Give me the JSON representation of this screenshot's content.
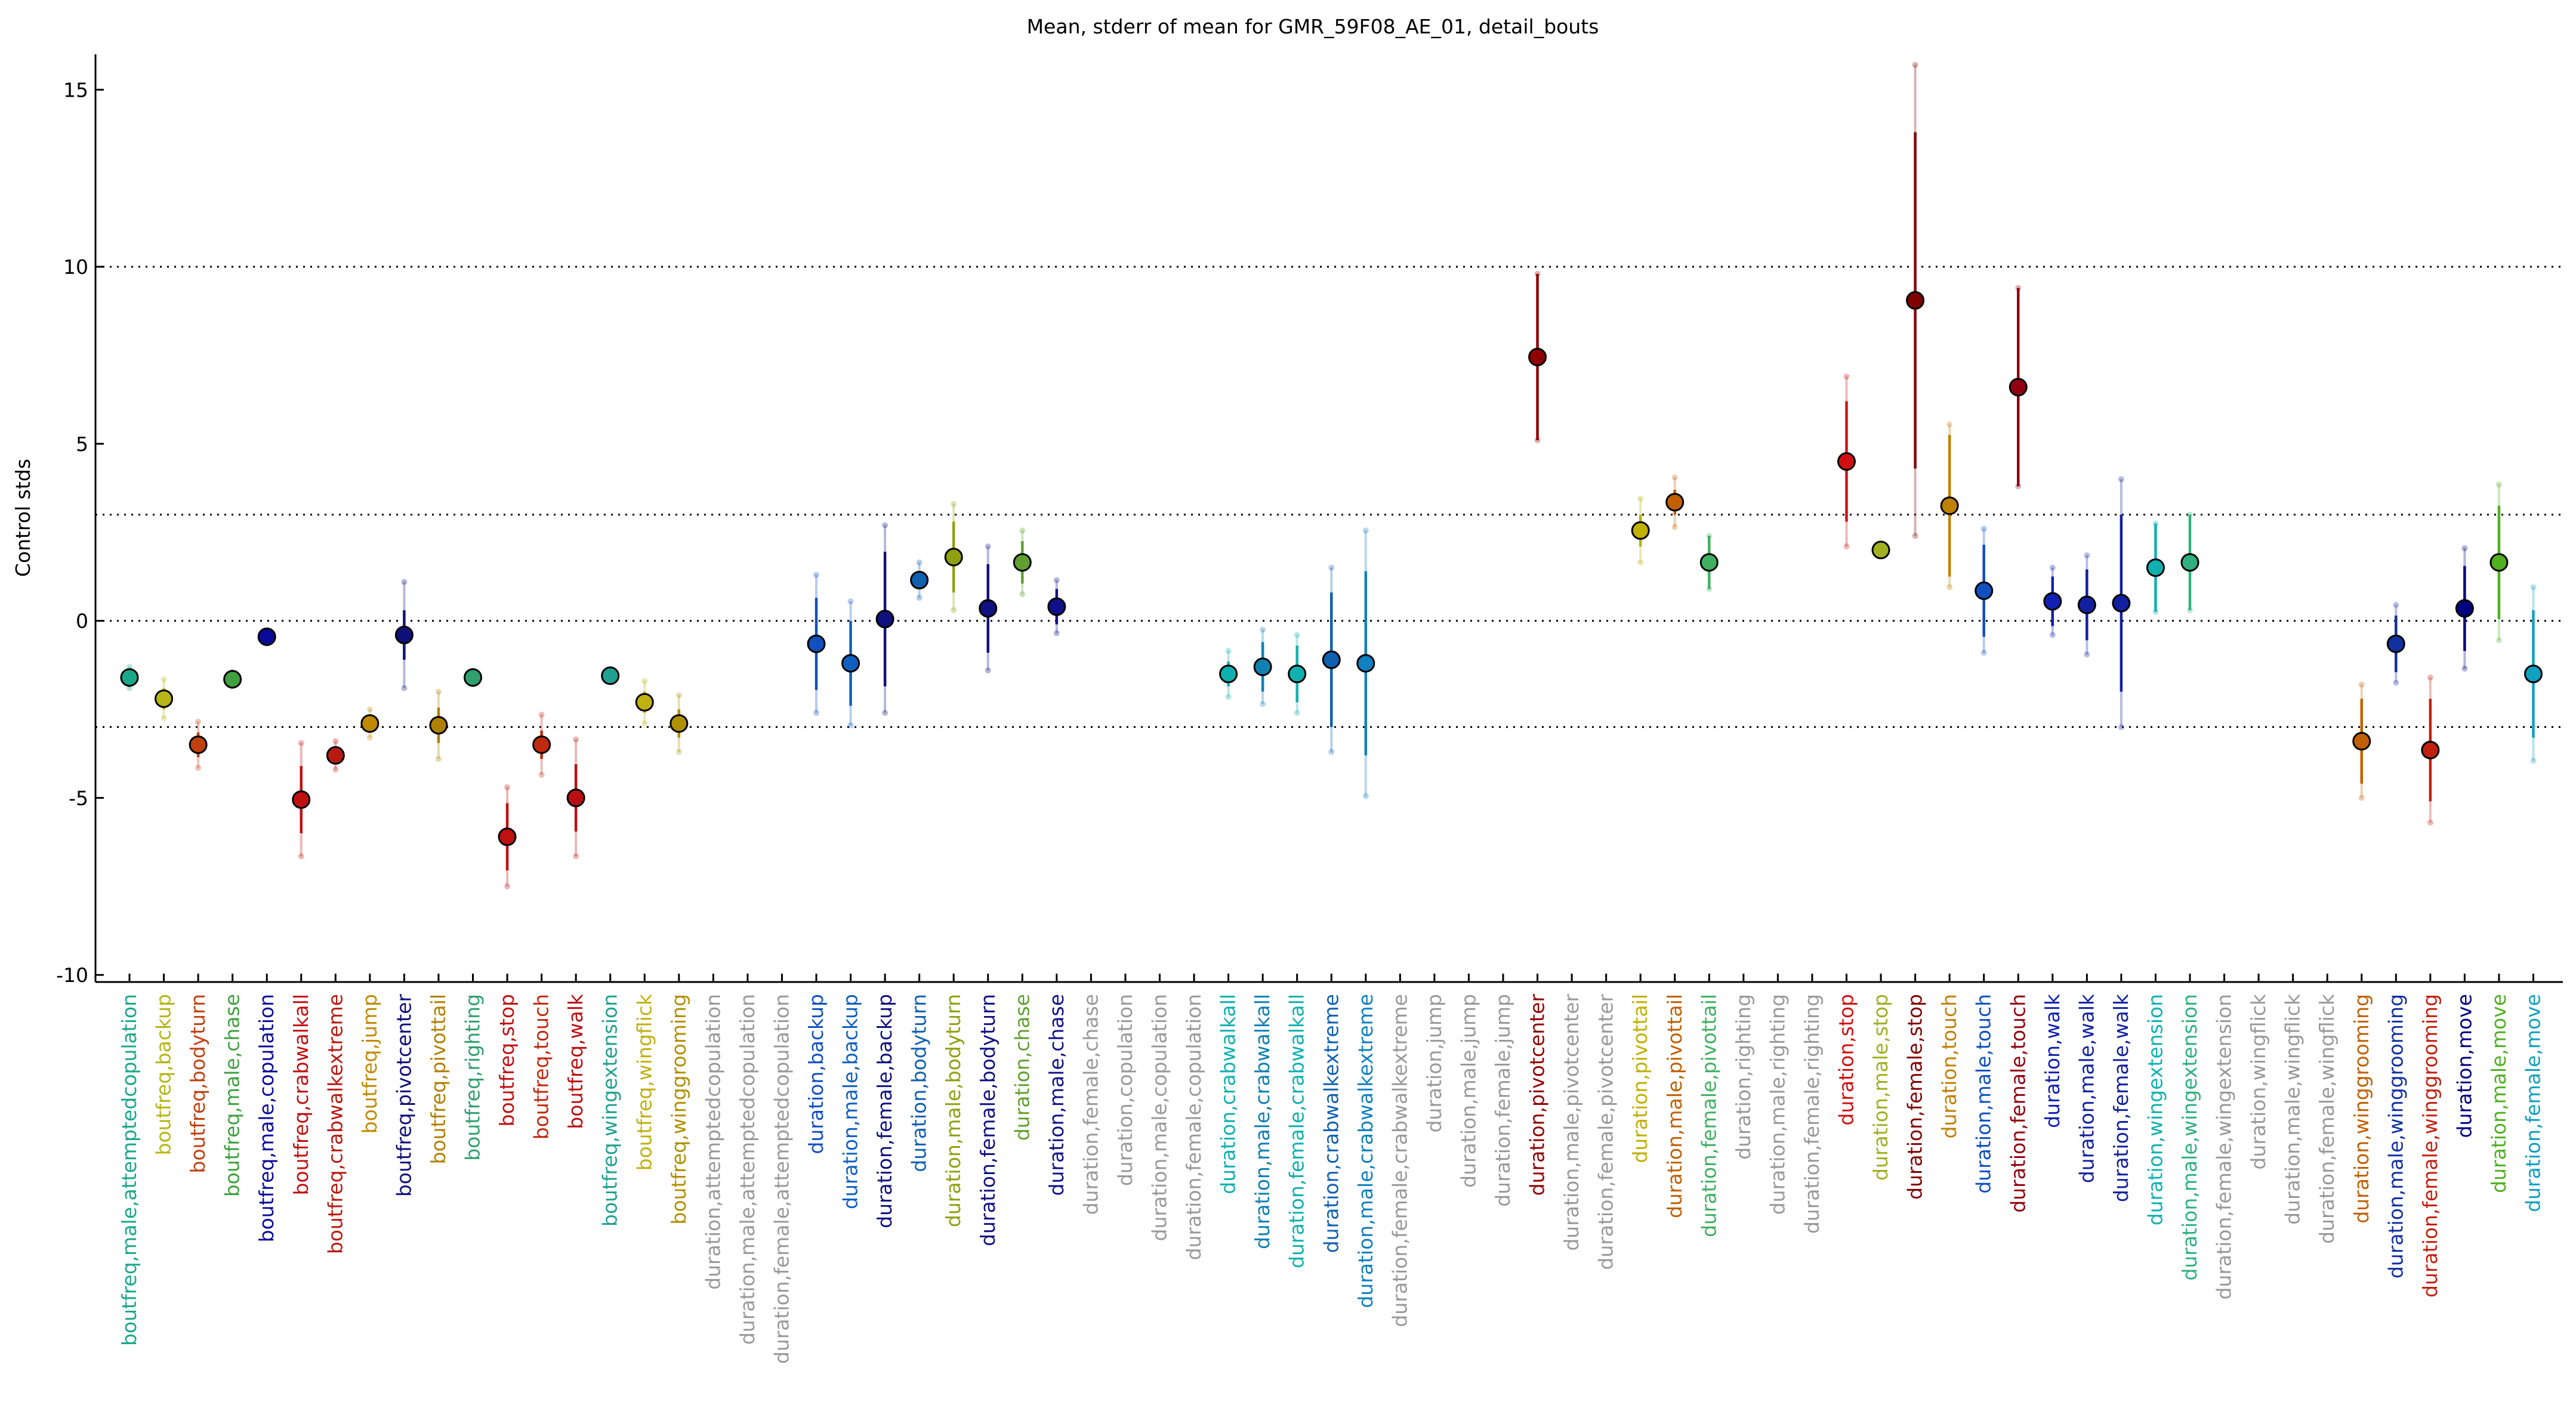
{
  "chart_data": {
    "type": "errorbar",
    "title": "Mean, stderr of mean for GMR_59F08_AE_01, detail_bouts",
    "ylabel": "Control stds",
    "ylim": [
      -10.2,
      16
    ],
    "yticks": [
      -10,
      -5,
      0,
      5,
      10,
      15
    ],
    "reference_lines": [
      10,
      3,
      0,
      -3
    ],
    "categories": [
      "boutfreq,male,attemptedcopulation",
      "boutfreq,backup",
      "boutfreq,bodyturn",
      "boutfreq,male,chase",
      "boutfreq,male,copulation",
      "boutfreq,crabwalkall",
      "boutfreq,crabwalkextreme",
      "boutfreq,jump",
      "boutfreq,pivotcenter",
      "boutfreq,pivottail",
      "boutfreq,righting",
      "boutfreq,stop",
      "boutfreq,touch",
      "boutfreq,walk",
      "boutfreq,wingextension",
      "boutfreq,wingflick",
      "boutfreq,winggrooming",
      "duration,attemptedcopulation",
      "duration,male,attemptedcopulation",
      "duration,female,attemptedcopulation",
      "duration,backup",
      "duration,male,backup",
      "duration,female,backup",
      "duration,bodyturn",
      "duration,male,bodyturn",
      "duration,female,bodyturn",
      "duration,chase",
      "duration,male,chase",
      "duration,female,chase",
      "duration,copulation",
      "duration,male,copulation",
      "duration,female,copulation",
      "duration,crabwalkall",
      "duration,male,crabwalkall",
      "duration,female,crabwalkall",
      "duration,crabwalkextreme",
      "duration,male,crabwalkextreme",
      "duration,female,crabwalkextreme",
      "duration,jump",
      "duration,male,jump",
      "duration,female,jump",
      "duration,pivotcenter",
      "duration,male,pivotcenter",
      "duration,female,pivotcenter",
      "duration,pivottail",
      "duration,male,pivottail",
      "duration,female,pivottail",
      "duration,righting",
      "duration,male,righting",
      "duration,female,righting",
      "duration,stop",
      "duration,male,stop",
      "duration,female,stop",
      "duration,touch",
      "duration,male,touch",
      "duration,female,touch",
      "duration,walk",
      "duration,male,walk",
      "duration,female,walk",
      "duration,wingextension",
      "duration,male,wingextension",
      "duration,female,wingextension",
      "duration,wingflick",
      "duration,male,wingflick",
      "duration,female,wingflick",
      "duration,winggrooming",
      "duration,male,winggrooming",
      "duration,female,winggrooming",
      "duration,move",
      "duration,male,move",
      "duration,female,move"
    ],
    "values": [
      -1.6,
      -2.2,
      -3.5,
      -1.65,
      -0.45,
      -5.05,
      -3.8,
      -2.9,
      -0.4,
      -2.95,
      -1.6,
      -6.1,
      -3.5,
      -5.0,
      -1.55,
      -2.3,
      -2.9,
      null,
      null,
      null,
      -0.65,
      -1.2,
      0.05,
      1.15,
      1.8,
      0.35,
      1.65,
      0.4,
      null,
      null,
      null,
      null,
      -1.5,
      -1.3,
      -1.5,
      -1.1,
      -1.2,
      null,
      null,
      null,
      null,
      7.45,
      null,
      null,
      2.55,
      3.35,
      1.65,
      null,
      null,
      null,
      4.5,
      2.0,
      9.05,
      3.25,
      0.85,
      6.6,
      0.55,
      0.45,
      0.5,
      1.5,
      1.65,
      null,
      null,
      null,
      null,
      -3.4,
      -0.65,
      -3.65,
      0.35,
      1.65,
      -1.5
    ],
    "errors": [
      0.15,
      0.3,
      0.35,
      0.1,
      0.1,
      0.95,
      0.25,
      0.2,
      0.7,
      0.5,
      0.1,
      0.95,
      0.4,
      0.95,
      0.1,
      0.3,
      0.4,
      null,
      null,
      null,
      1.3,
      1.2,
      1.9,
      0.2,
      1.0,
      1.25,
      0.6,
      0.5,
      null,
      null,
      null,
      null,
      0.35,
      0.7,
      0.8,
      1.9,
      2.6,
      null,
      null,
      null,
      null,
      2.35,
      null,
      null,
      0.45,
      0.35,
      0.75,
      null,
      null,
      null,
      1.7,
      0.1,
      4.75,
      2.0,
      1.3,
      2.8,
      0.7,
      1.0,
      2.5,
      1.25,
      1.35,
      null,
      null,
      null,
      null,
      1.2,
      0.8,
      1.45,
      1.2,
      1.6,
      1.8
    ],
    "spreads": [
      0.3,
      0.55,
      0.65,
      0.2,
      0.15,
      1.6,
      0.4,
      0.4,
      1.5,
      0.95,
      0.2,
      1.4,
      0.85,
      1.65,
      0.15,
      0.6,
      0.8,
      null,
      null,
      null,
      1.95,
      1.75,
      2.65,
      0.5,
      1.5,
      1.75,
      0.9,
      0.75,
      null,
      null,
      null,
      null,
      0.65,
      1.05,
      1.1,
      2.6,
      3.75,
      null,
      null,
      null,
      null,
      2.35,
      null,
      null,
      0.9,
      0.7,
      0.75,
      null,
      null,
      null,
      2.4,
      0.15,
      6.65,
      2.3,
      1.75,
      2.8,
      0.95,
      1.4,
      3.5,
      1.25,
      1.35,
      null,
      null,
      null,
      null,
      1.6,
      1.1,
      2.05,
      1.7,
      2.2,
      2.45
    ],
    "colors": [
      "#1aa88a",
      "#b5b515",
      "#c04010",
      "#40a040",
      "#0a0a9a",
      "#c01010",
      "#b81a10",
      "#c08a00",
      "#10107a",
      "#b08000",
      "#30a070",
      "#c01010",
      "#c02a10",
      "#b81010",
      "#20a090",
      "#c0b010",
      "#b09000",
      "#999999",
      "#999999",
      "#999999",
      "#1050c0",
      "#1060c0",
      "#101080",
      "#1060b0",
      "#90a010",
      "#101080",
      "#60a030",
      "#10108a",
      "#999999",
      "#999999",
      "#999999",
      "#999999",
      "#10b0b0",
      "#1080b0",
      "#10b0b0",
      "#1060b0",
      "#1080c0",
      "#999999",
      "#999999",
      "#999999",
      "#999999",
      "#900000",
      "#999999",
      "#999999",
      "#c0b000",
      "#c06000",
      "#40b060",
      "#999999",
      "#999999",
      "#999999",
      "#d01010",
      "#a0b020",
      "#800000",
      "#c08000",
      "#1050c0",
      "#900010",
      "#1020b0",
      "#1020a0",
      "#1020a0",
      "#10b0b0",
      "#30b080",
      "#999999",
      "#999999",
      "#999999",
      "#999999",
      "#c06000",
      "#1030a0",
      "#c02010",
      "#000080",
      "#50b020",
      "#10a0c0"
    ]
  }
}
